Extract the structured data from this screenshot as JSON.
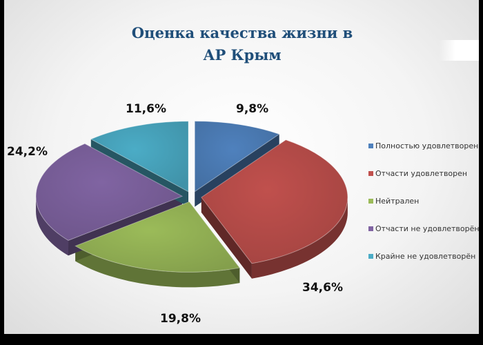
{
  "chart_data": {
    "type": "pie",
    "title_lines": [
      "Оценка качества жизни в",
      "АР Крым"
    ],
    "slices": [
      {
        "label": "Полностью удовлетворен",
        "value": 9.8,
        "display": "9,8%",
        "color": "#4f81bd"
      },
      {
        "label": "Отчасти удовлетворен",
        "value": 34.6,
        "display": "34,6%",
        "color": "#c0504d"
      },
      {
        "label": "Нейтрален",
        "value": 19.8,
        "display": "19,8%",
        "color": "#9bbb59"
      },
      {
        "label": "Отчасти не удовлетворён",
        "value": 24.2,
        "display": "24,2%",
        "color": "#8064a2"
      },
      {
        "label": "Крайне не удовлетворён",
        "value": 11.6,
        "display": "11,6%",
        "color": "#4bacc6"
      }
    ],
    "legend_position": "right"
  }
}
